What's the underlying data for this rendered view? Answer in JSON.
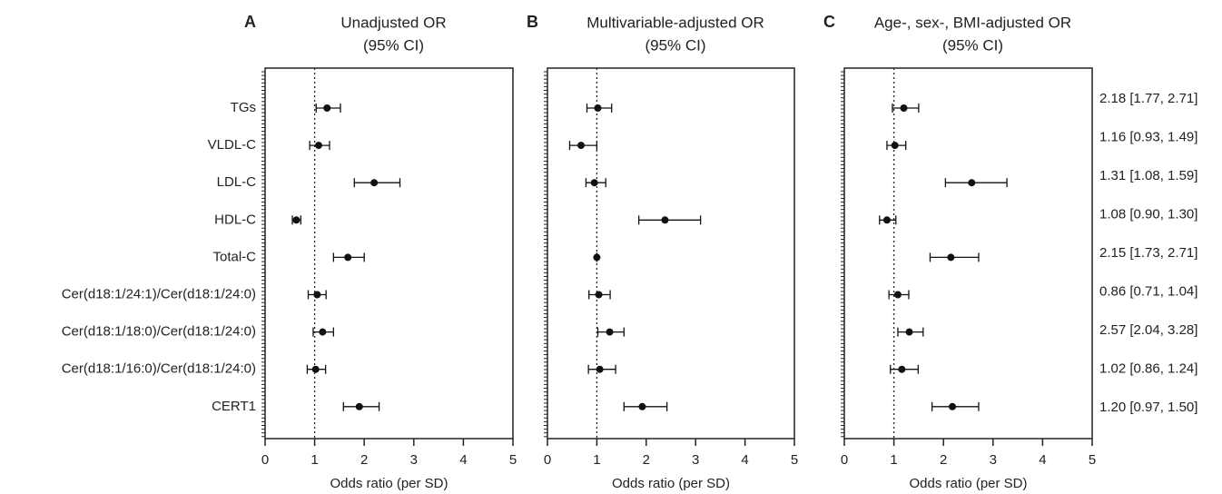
{
  "chart_data": [
    {
      "type": "forest",
      "panel": "A",
      "title": "Unadjusted OR",
      "subtitle": "(95% CI)",
      "categories": [
        "TGs",
        "VLDL-C",
        "LDL-C",
        "HDL-C",
        "Total-C",
        "Cer(d18:1/24:1)/Cer(d18:1/24:0)",
        "Cer(d18:1/18:0)/Cer(d18:1/24:0)",
        "Cer(d18:1/16:0)/Cer(d18:1/24:0)",
        "CERT1"
      ],
      "values": [
        1.25,
        1.08,
        2.2,
        0.63,
        1.67,
        1.05,
        1.16,
        1.02,
        1.9
      ],
      "lower": [
        1.03,
        0.9,
        1.8,
        0.55,
        1.38,
        0.87,
        0.97,
        0.85,
        1.58
      ],
      "upper": [
        1.52,
        1.3,
        2.72,
        0.72,
        2.0,
        1.23,
        1.38,
        1.22,
        2.3
      ],
      "xlabel": "Odds ratio (per SD)",
      "xlim": [
        0,
        5
      ],
      "xticks": [
        0,
        1,
        2,
        3,
        4,
        5
      ],
      "refline": 1,
      "color": "#111"
    },
    {
      "type": "forest",
      "panel": "B",
      "title": "Multivariable-adjusted OR",
      "subtitle": "(95% CI)",
      "values": [
        1.02,
        0.68,
        0.95,
        2.38,
        1.0,
        1.04,
        1.26,
        1.06,
        1.92
      ],
      "lower": [
        0.8,
        0.45,
        0.78,
        1.85,
        1.0,
        0.84,
        1.02,
        0.83,
        1.55
      ],
      "upper": [
        1.3,
        1.0,
        1.18,
        3.1,
        1.0,
        1.27,
        1.55,
        1.38,
        2.42
      ],
      "xlabel": "Odds ratio (per SD)",
      "xlim": [
        0,
        5
      ],
      "xticks": [
        0,
        1,
        2,
        3,
        4,
        5
      ],
      "refline": 1,
      "color": "#111"
    },
    {
      "type": "forest",
      "panel": "C",
      "title": "Age-, sex-, BMI-adjusted OR",
      "subtitle": "(95% CI)",
      "values": [
        1.2,
        1.02,
        2.57,
        0.86,
        2.15,
        1.08,
        1.31,
        1.16,
        2.18
      ],
      "lower": [
        0.97,
        0.86,
        2.04,
        0.71,
        1.73,
        0.9,
        1.08,
        0.93,
        1.77
      ],
      "upper": [
        1.5,
        1.24,
        3.28,
        1.04,
        2.71,
        1.3,
        1.59,
        1.49,
        2.71
      ],
      "annotations": [
        "2.18 [1.77, 2.71]",
        "1.16 [0.93, 1.49]",
        "1.31 [1.08, 1.59]",
        "1.08 [0.90, 1.30]",
        "2.15 [1.73, 2.71]",
        "0.86 [0.71, 1.04]",
        "2.57 [2.04, 3.28]",
        "1.02 [0.86, 1.24]",
        "1.20 [0.97, 1.50]"
      ],
      "xlabel": "Odds ratio (per SD)",
      "xlim": [
        0,
        5
      ],
      "xticks": [
        0,
        1,
        2,
        3,
        4,
        5
      ],
      "refline": 1,
      "color": "#111"
    }
  ]
}
